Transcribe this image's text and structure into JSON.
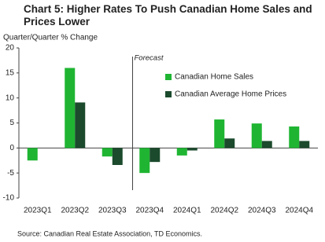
{
  "chart_data": {
    "type": "bar",
    "title": "Chart 5: Higher Rates To Push Canadian Home Sales and Prices Lower",
    "ylabel": "Quarter/Quarter % Change",
    "annotation": "Forecast",
    "source": "Source: Canadian Real Estate Association, TD Economics.",
    "categories": [
      "2023Q1",
      "2023Q2",
      "2023Q3",
      "2023Q4",
      "2024Q1",
      "2024Q2",
      "2024Q3",
      "2024Q4"
    ],
    "series": [
      {
        "name": "Canadian Home Sales",
        "color": "#1fb532",
        "values": [
          -2.5,
          16,
          -1.7,
          -5,
          -1.5,
          5.7,
          4.9,
          4.3
        ]
      },
      {
        "name": "Canadian Average Home Prices",
        "color": "#1b4a2c",
        "values": [
          null,
          9.1,
          -3.4,
          -2.8,
          -0.5,
          1.9,
          1.4,
          1.4
        ]
      }
    ],
    "ylim": [
      -10,
      20
    ],
    "yticks": [
      -10,
      -5,
      0,
      5,
      10,
      15,
      20
    ]
  }
}
